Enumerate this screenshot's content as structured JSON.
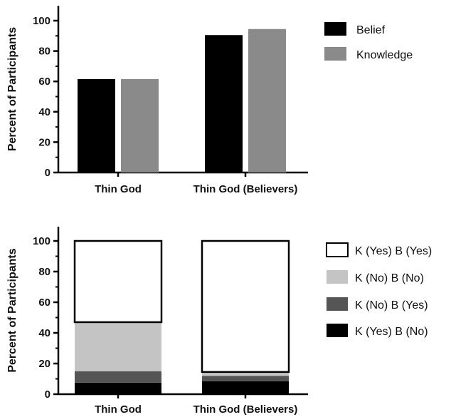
{
  "chart_data": [
    {
      "type": "bar",
      "ylabel": "Percent of Participants",
      "xlabel": "",
      "ylim": [
        0,
        100
      ],
      "yticks": [
        0,
        20,
        40,
        60,
        80,
        100
      ],
      "categories": [
        "Thin God",
        "Thin God (Believers)"
      ],
      "legend_position": "right",
      "series": [
        {
          "name": "Belief",
          "values": [
            61.5,
            90.5
          ],
          "color": "#000000"
        },
        {
          "name": "Knowledge",
          "values": [
            61.5,
            94.5
          ],
          "color": "#8a8a8a"
        }
      ]
    },
    {
      "type": "bar",
      "stacked": true,
      "ylabel": "Percent of Participants",
      "xlabel": "",
      "ylim": [
        0,
        100
      ],
      "yticks": [
        0,
        20,
        40,
        60,
        80,
        100
      ],
      "categories": [
        "Thin God",
        "Thin God (Believers)"
      ],
      "legend_position": "right",
      "series": [
        {
          "name": "K (Yes) B (No)",
          "values": [
            7.5,
            8.5
          ],
          "color": "#000000"
        },
        {
          "name": "K (No) B (Yes)",
          "values": [
            7.5,
            3.5
          ],
          "color": "#555555"
        },
        {
          "name": "K (No) B (No)",
          "values": [
            32,
            2.5
          ],
          "color": "#c4c4c4"
        },
        {
          "name": "K (Yes) B (Yes)",
          "values": [
            53,
            85.5
          ],
          "color": "#ffffff"
        }
      ],
      "legend_order": [
        "K (Yes) B (Yes)",
        "K (No) B (No)",
        "K (No) B (Yes)",
        "K (Yes) B (No)"
      ]
    }
  ]
}
